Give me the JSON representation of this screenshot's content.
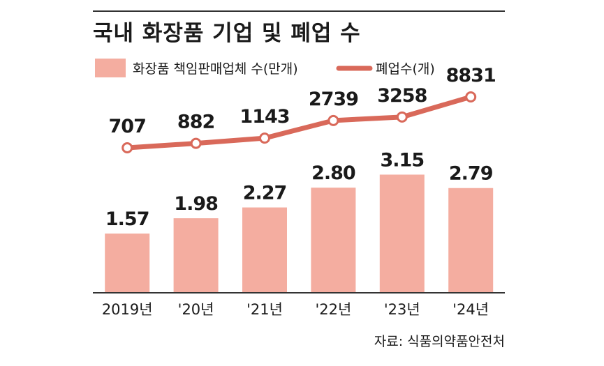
{
  "chart_data": {
    "type": "bar",
    "title": "국내 화장품 기업 및 폐업 수",
    "categories": [
      "2019년",
      "'20년",
      "'21년",
      "'22년",
      "'23년",
      "'24년"
    ],
    "series": [
      {
        "name": "화장품 책임판매업체 수(만개)",
        "type": "bar",
        "values": [
          1.57,
          1.98,
          2.27,
          2.8,
          3.15,
          2.79
        ],
        "labels": [
          "1.57",
          "1.98",
          "2.27",
          "2.80",
          "3.15",
          "2.79"
        ],
        "color": "#f4ada0"
      },
      {
        "name": "폐업수(개)",
        "type": "line",
        "values": [
          707,
          882,
          1143,
          2739,
          3258,
          8831
        ],
        "labels": [
          "707",
          "882",
          "1143",
          "2739",
          "3258",
          "8831"
        ],
        "color": "#d9695a"
      }
    ],
    "source": "자료: 식품의약품안전처",
    "colors": {
      "title_rule": "#333333",
      "axis": "#333333"
    }
  }
}
